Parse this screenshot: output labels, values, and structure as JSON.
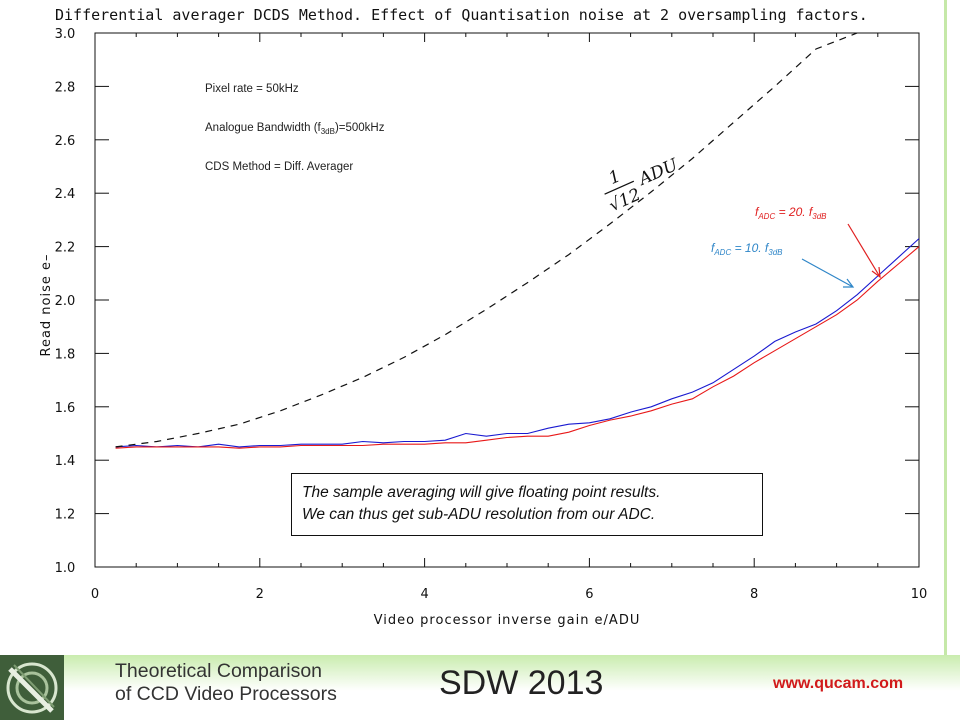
{
  "chart_data": {
    "type": "line",
    "title": "Differential averager DCDS Method. Effect of Quantisation noise at 2 oversampling factors.",
    "xlabel": "Video processor inverse gain e/ADU",
    "ylabel": "Read noise e–",
    "xlim": [
      0,
      10
    ],
    "ylim": [
      1.0,
      3.0
    ],
    "xticks": [
      "0",
      "2",
      "4",
      "6",
      "8",
      "10"
    ],
    "yticks": [
      "1.0",
      "1.2",
      "1.4",
      "1.6",
      "1.8",
      "2.0",
      "2.2",
      "2.4",
      "2.6",
      "2.8",
      "3.0"
    ],
    "grid": false,
    "series": [
      {
        "name": "",
        "color": "#1a1ad0",
        "x": [
          0.25,
          0.5,
          0.75,
          1.0,
          1.25,
          1.5,
          1.75,
          2.0,
          2.25,
          2.5,
          2.75,
          3.0,
          3.25,
          3.5,
          3.75,
          4.0,
          4.25,
          4.5,
          4.75,
          5.0,
          5.25,
          5.5,
          5.75,
          6.0,
          6.25,
          6.5,
          6.75,
          7.0,
          7.25,
          7.5,
          7.75,
          8.0,
          8.25,
          8.5,
          8.75,
          9.0,
          9.25,
          9.5,
          9.75,
          10.0
        ],
        "values": [
          1.45,
          1.455,
          1.45,
          1.455,
          1.45,
          1.46,
          1.45,
          1.455,
          1.455,
          1.46,
          1.46,
          1.46,
          1.47,
          1.465,
          1.47,
          1.47,
          1.475,
          1.5,
          1.49,
          1.5,
          1.5,
          1.52,
          1.535,
          1.54,
          1.555,
          1.58,
          1.6,
          1.63,
          1.655,
          1.69,
          1.74,
          1.79,
          1.845,
          1.88,
          1.91,
          1.96,
          2.02,
          2.09,
          2.16,
          2.23
        ]
      },
      {
        "name": "",
        "color": "#e81818",
        "x": [
          0.25,
          0.5,
          0.75,
          1.0,
          1.25,
          1.5,
          1.75,
          2.0,
          2.25,
          2.5,
          2.75,
          3.0,
          3.25,
          3.5,
          3.75,
          4.0,
          4.25,
          4.5,
          4.75,
          5.0,
          5.25,
          5.5,
          5.75,
          6.0,
          6.25,
          6.5,
          6.75,
          7.0,
          7.25,
          7.5,
          7.75,
          8.0,
          8.25,
          8.5,
          8.75,
          9.0,
          9.25,
          9.5,
          9.75,
          10.0
        ],
        "values": [
          1.445,
          1.45,
          1.45,
          1.45,
          1.45,
          1.45,
          1.445,
          1.45,
          1.45,
          1.455,
          1.455,
          1.455,
          1.455,
          1.46,
          1.46,
          1.46,
          1.465,
          1.465,
          1.475,
          1.485,
          1.49,
          1.49,
          1.505,
          1.53,
          1.55,
          1.565,
          1.585,
          1.61,
          1.63,
          1.675,
          1.715,
          1.765,
          1.81,
          1.855,
          1.9,
          1.945,
          2.0,
          2.07,
          2.135,
          2.2
        ]
      },
      {
        "name": "",
        "color": "#111111",
        "dashed": true,
        "x": [
          0.25,
          0.75,
          1.25,
          1.75,
          2.25,
          2.75,
          3.25,
          3.75,
          4.25,
          4.75,
          5.25,
          5.75,
          6.25,
          6.75,
          7.25,
          7.75,
          8.25,
          8.75,
          9.25
        ],
        "values": [
          1.45,
          1.47,
          1.5,
          1.535,
          1.585,
          1.645,
          1.71,
          1.785,
          1.87,
          1.965,
          2.065,
          2.17,
          2.285,
          2.405,
          2.53,
          2.665,
          2.8,
          2.94,
          3.0
        ]
      }
    ],
    "annotations": {
      "pixel_rate": "Pixel rate = 50kHz",
      "bandwidth_prefix": "Analogue Bandwidth (f",
      "bandwidth_sub": "3dB",
      "bandwidth_suffix": ")=500kHz",
      "cds_method": "CDS Method = Diff. Averager",
      "formula_numerator": "1",
      "formula_denominator": "√12",
      "formula_unit": "ADU",
      "label_red_f": "f",
      "label_red_sub1": "ADC",
      "label_red_mid": " = 20. f",
      "label_red_sub2": "3dB",
      "label_blue_f": "f",
      "label_blue_sub1": "ADC",
      "label_blue_mid": " = 10. f",
      "label_blue_sub2": "3dB"
    }
  },
  "note": {
    "line1": "The sample averaging will give floating point results.",
    "line2": "We can thus get sub-ADU resolution from our ADC."
  },
  "footer": {
    "title_line1": "Theoretical Comparison",
    "title_line2": "of CCD Video Processors",
    "event": "SDW 2013",
    "url": "www.qucam.com"
  }
}
